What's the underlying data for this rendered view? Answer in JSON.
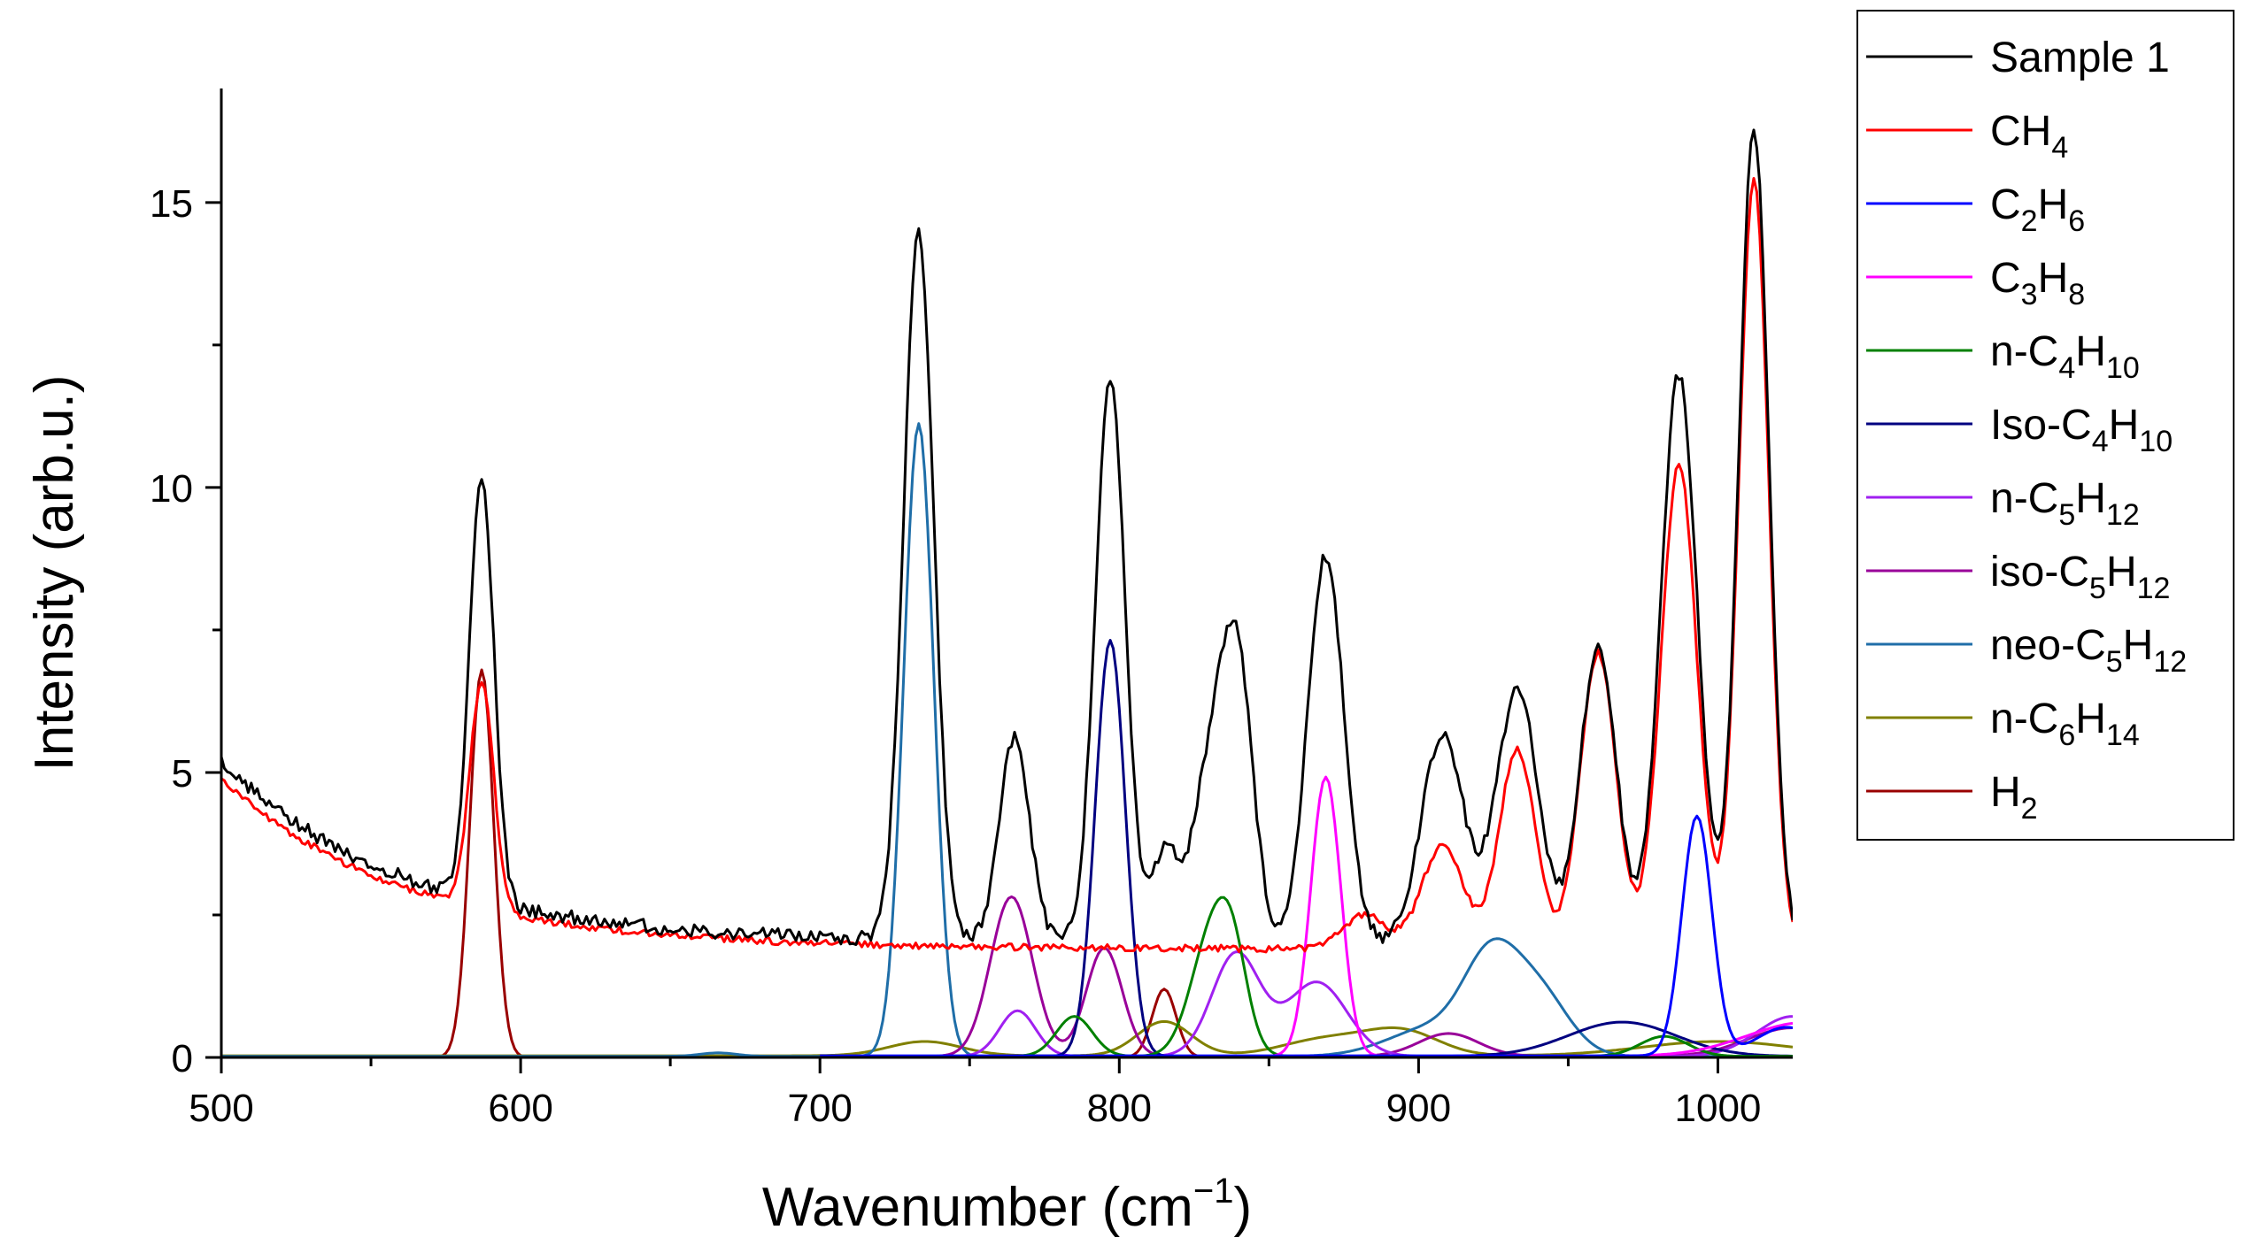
{
  "chart_data": {
    "type": "line",
    "title": "",
    "xlabel": "Wavenumber (cm",
    "xlabel_sup": "−1",
    "xlabel_close": ")",
    "ylabel": "Intensity (arb.u.)",
    "xlim": [
      500,
      1025
    ],
    "ylim": [
      0,
      17
    ],
    "xticks": [
      500,
      600,
      700,
      800,
      900,
      1000
    ],
    "yticks": [
      0,
      5,
      10,
      15
    ],
    "legend_position": "right",
    "series": [
      {
        "name": "Sample 1",
        "label": [
          [
            "Sample 1",
            ""
          ]
        ],
        "color": "#000000",
        "baseline": {
          "type": "exp",
          "a": 2.0,
          "b": 3.2,
          "x0": 500,
          "tau": 60,
          "from": 500
        },
        "noise": 0.12,
        "peaks": [
          [
            587,
            7.5,
            4
          ],
          [
            733,
            12.4,
            5
          ],
          [
            765,
            3.6,
            5
          ],
          [
            797,
            9.9,
            5
          ],
          [
            815,
            1.5,
            4
          ],
          [
            832,
            3.4,
            7
          ],
          [
            840,
            3.6,
            5
          ],
          [
            869,
            6.8,
            6
          ],
          [
            908,
            3.7,
            7
          ],
          [
            933,
            4.4,
            7
          ],
          [
            960,
            5.2,
            6
          ],
          [
            987,
            10.0,
            6
          ],
          [
            1012,
            14.3,
            5
          ]
        ]
      },
      {
        "name": "CH4",
        "label": [
          [
            "CH",
            ""
          ],
          [
            "4",
            "sub"
          ]
        ],
        "color": "#ff0000",
        "baseline": {
          "type": "exp",
          "a": 1.9,
          "b": 3.0,
          "x0": 500,
          "tau": 60,
          "from": 500
        },
        "noise": 0.06,
        "peaks": [
          [
            587,
            4.0,
            4
          ],
          [
            882,
            0.6,
            7
          ],
          [
            908,
            1.8,
            7
          ],
          [
            933,
            3.5,
            6
          ],
          [
            960,
            5.2,
            6
          ],
          [
            987,
            8.5,
            6
          ],
          [
            1012,
            13.5,
            5
          ]
        ]
      },
      {
        "name": "C2H6",
        "label": [
          [
            "C",
            ""
          ],
          [
            "2",
            "sub"
          ],
          [
            "H",
            ""
          ],
          [
            "6",
            "sub"
          ]
        ],
        "color": "#0000ff",
        "baseline": {
          "type": "const",
          "a": 0.03,
          "from": 700
        },
        "noise": 0,
        "peaks": [
          [
            993,
            4.2,
            5
          ],
          [
            1023,
            0.5,
            10
          ]
        ]
      },
      {
        "name": "C3H8",
        "label": [
          [
            "C",
            ""
          ],
          [
            "3",
            "sub"
          ],
          [
            "H",
            ""
          ],
          [
            "8",
            "sub"
          ]
        ],
        "color": "#ff00ff",
        "baseline": {
          "type": "const",
          "a": 0.02,
          "from": 700
        },
        "noise": 0,
        "peaks": [
          [
            869,
            4.9,
            5
          ],
          [
            1030,
            0.6,
            20
          ]
        ]
      },
      {
        "name": "n-C4H10",
        "label": [
          [
            "n-C",
            ""
          ],
          [
            "4",
            "sub"
          ],
          [
            "H",
            ""
          ],
          [
            "10",
            "sub"
          ]
        ],
        "color": "#008000",
        "baseline": {
          "type": "const",
          "a": 0.02,
          "from": 700
        },
        "noise": 0,
        "peaks": [
          [
            785,
            0.7,
            6
          ],
          [
            831,
            2.1,
            7
          ],
          [
            838,
            1.2,
            5
          ],
          [
            982,
            0.35,
            8
          ]
        ]
      },
      {
        "name": "Iso-C4H10",
        "label": [
          [
            "Iso-C",
            ""
          ],
          [
            "4",
            "sub"
          ],
          [
            "H",
            ""
          ],
          [
            "10",
            "sub"
          ]
        ],
        "color": "#000080",
        "baseline": {
          "type": "const",
          "a": 0.02,
          "from": 700
        },
        "noise": 0,
        "peaks": [
          [
            797,
            7.3,
            5
          ],
          [
            968,
            0.6,
            18
          ]
        ]
      },
      {
        "name": "n-C5H12",
        "label": [
          [
            "n-C",
            ""
          ],
          [
            "5",
            "sub"
          ],
          [
            "H",
            ""
          ],
          [
            "12",
            "sub"
          ]
        ],
        "color": "#a020f0",
        "baseline": {
          "type": "const",
          "a": 0.02,
          "from": 700
        },
        "noise": 0,
        "peaks": [
          [
            766,
            0.8,
            6
          ],
          [
            839,
            1.8,
            8
          ],
          [
            866,
            1.3,
            10
          ],
          [
            1025,
            0.7,
            12
          ]
        ]
      },
      {
        "name": "iso-C5H12",
        "label": [
          [
            "iso-C",
            ""
          ],
          [
            "5",
            "sub"
          ],
          [
            "H",
            ""
          ],
          [
            "12",
            "sub"
          ]
        ],
        "color": "#990099",
        "baseline": {
          "type": "const",
          "a": 0.02,
          "from": 700
        },
        "noise": 0,
        "peaks": [
          [
            764,
            2.8,
            7
          ],
          [
            795,
            1.9,
            6
          ],
          [
            910,
            0.4,
            10
          ],
          [
            1025,
            0.5,
            15
          ]
        ]
      },
      {
        "name": "neo-C5H12",
        "label": [
          [
            "neo-C",
            ""
          ],
          [
            "5",
            "sub"
          ],
          [
            "H",
            ""
          ],
          [
            "12",
            "sub"
          ]
        ],
        "color": "#1f6ea8",
        "baseline": {
          "type": "const",
          "a": 0.02,
          "from": 500
        },
        "noise": 0,
        "peaks": [
          [
            666,
            0.06,
            6
          ],
          [
            733,
            11.1,
            5
          ],
          [
            905,
            0.5,
            15
          ],
          [
            924,
            1.5,
            9
          ],
          [
            940,
            1.1,
            10
          ]
        ]
      },
      {
        "name": "n-C6H14",
        "label": [
          [
            "n-C",
            ""
          ],
          [
            "6",
            "sub"
          ],
          [
            "H",
            ""
          ],
          [
            "14",
            "sub"
          ]
        ],
        "color": "#808000",
        "baseline": {
          "type": "const",
          "a": 0.03,
          "from": 500
        },
        "noise": 0,
        "peaks": [
          [
            735,
            0.25,
            12
          ],
          [
            815,
            0.6,
            9
          ],
          [
            870,
            0.3,
            15
          ],
          [
            895,
            0.4,
            12
          ],
          [
            1000,
            0.25,
            25
          ]
        ]
      },
      {
        "name": "H2",
        "label": [
          [
            "H",
            ""
          ],
          [
            "2",
            "sub"
          ]
        ],
        "color": "#990000",
        "baseline": {
          "type": "const",
          "a": 0.0,
          "from": 560
        },
        "noise": 0,
        "peaks": [
          [
            587,
            6.8,
            4
          ],
          [
            815,
            1.2,
            4
          ]
        ]
      }
    ]
  }
}
